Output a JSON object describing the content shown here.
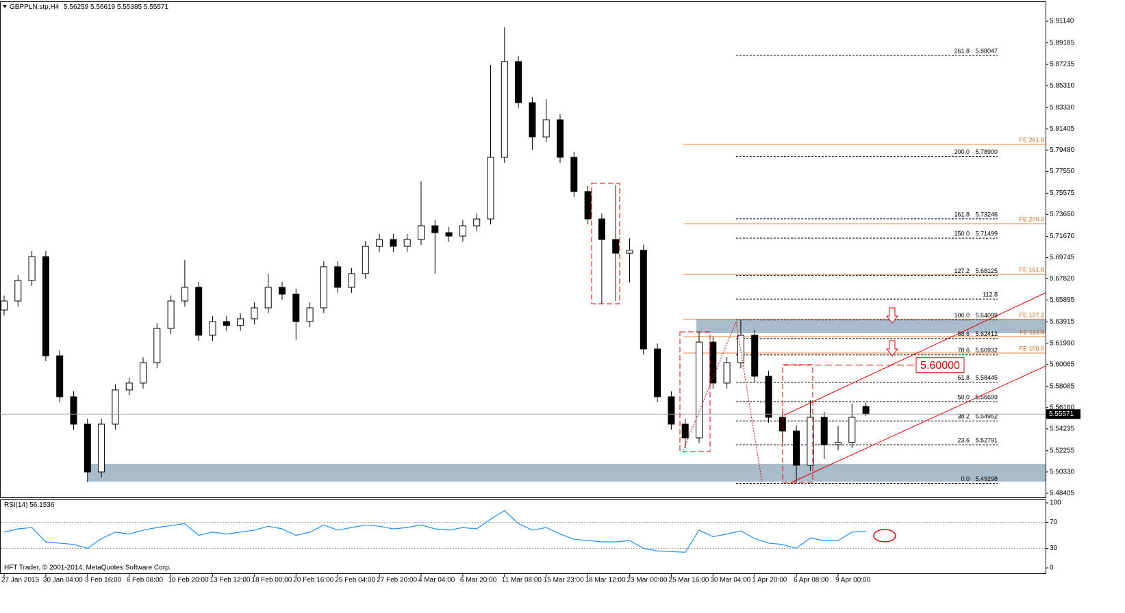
{
  "chart_data": [
    {
      "type": "candlestick",
      "title": "GBPPLN.stp,H4",
      "categories": [
        "27 Jan 2015",
        null,
        null,
        "30 Jan 04:00",
        null,
        null,
        "3 Feb 16:00",
        null,
        null,
        "6 Feb 08:00",
        null,
        null,
        "10 Feb 20:00",
        null,
        null,
        "13 Feb 12:00",
        null,
        null,
        "18 Feb 00:00",
        null,
        null,
        "20 Feb 16:00",
        null,
        null,
        "25 Feb 04:00",
        null,
        null,
        "27 Feb 20:00",
        null,
        null,
        "4 Mar 04:00",
        null,
        null,
        "6 Mar 20:00",
        null,
        null,
        "11 Mar 08:00",
        null,
        null,
        "15 Mar 23:00",
        null,
        null,
        "18 Mar 12:00",
        null,
        null,
        "23 Mar 00:00",
        null,
        null,
        "25 Mar 16:00",
        null,
        null,
        "30 Mar 04:00",
        null,
        null,
        "1 Apr 20:00",
        null,
        null,
        "6 Apr 08:00",
        null,
        null,
        "9 Apr 00:00",
        null,
        null
      ],
      "open": [
        5.65,
        5.6581,
        5.6767,
        5.6983,
        5.6085,
        5.5714,
        5.5466,
        5.5033,
        5.5466,
        5.5776,
        5.5838,
        5.6023,
        5.6333,
        5.6581,
        5.6705,
        5.6271,
        5.6395,
        5.636,
        5.642,
        5.6519,
        5.6705,
        5.6643,
        5.6395,
        5.6519,
        5.6891,
        5.6705,
        5.6829,
        5.7076,
        5.7138,
        5.7076,
        5.7138,
        5.7262,
        5.72,
        5.7169,
        5.7262,
        5.7324,
        5.7882,
        5.8749,
        5.8377,
        5.8067,
        5.8222,
        5.7882,
        5.7572,
        5.7324,
        5.7138,
        5.7014,
        5.704,
        5.6147,
        5.5714,
        5.5466,
        5.5342,
        5.6209,
        5.5838,
        5.6023,
        5.6271,
        5.59,
        5.5528,
        5.5404,
        5.5094,
        5.5528,
        5.528,
        5.53,
        5.56259
      ],
      "high": [
        5.6631,
        5.6817,
        5.7033,
        5.7033,
        5.6135,
        5.5764,
        5.5516,
        5.5516,
        5.5826,
        5.5888,
        5.6073,
        5.6383,
        5.6631,
        5.6953,
        5.6755,
        5.6445,
        5.6445,
        5.647,
        5.6569,
        5.683,
        5.6755,
        5.6693,
        5.6569,
        5.6941,
        5.6941,
        5.6879,
        5.7126,
        5.7188,
        5.7188,
        5.7188,
        5.7665,
        5.7312,
        5.725,
        5.7312,
        5.7374,
        5.8718,
        5.906,
        5.8799,
        5.8427,
        5.8408,
        5.8272,
        5.7932,
        5.7622,
        5.7374,
        5.763,
        5.715,
        5.709,
        5.6197,
        5.5764,
        5.5516,
        5.63,
        5.6259,
        5.6073,
        5.641,
        5.6321,
        5.595,
        5.5578,
        5.5454,
        5.5683,
        5.5578,
        5.545,
        5.565,
        5.56619
      ],
      "low": [
        5.645,
        5.6531,
        5.6717,
        5.6035,
        5.5664,
        5.5416,
        5.494,
        5.4983,
        5.5416,
        5.5726,
        5.5788,
        5.5973,
        5.6283,
        5.6531,
        5.6221,
        5.6221,
        5.631,
        5.631,
        5.637,
        5.6469,
        5.6593,
        5.623,
        5.6345,
        5.6469,
        5.6655,
        5.6655,
        5.6779,
        5.7026,
        5.7026,
        5.7026,
        5.7088,
        5.6829,
        5.7119,
        5.7119,
        5.7212,
        5.7274,
        5.7832,
        5.8327,
        5.795,
        5.8017,
        5.7832,
        5.7522,
        5.7274,
        5.6556,
        5.658,
        5.675,
        5.6097,
        5.5664,
        5.5416,
        5.525,
        5.5292,
        5.5788,
        5.5788,
        5.5973,
        5.585,
        5.5478,
        5.53,
        5.493,
        5.5044,
        5.515,
        5.523,
        5.525,
        5.55385
      ],
      "close": [
        5.6581,
        5.6767,
        5.6983,
        5.6085,
        5.5714,
        5.5466,
        5.5033,
        5.5466,
        5.5776,
        5.5838,
        5.6023,
        5.6333,
        5.6581,
        5.6705,
        5.6271,
        5.6395,
        5.636,
        5.642,
        5.6519,
        5.6705,
        5.6643,
        5.6395,
        5.6519,
        5.6891,
        5.6705,
        5.6829,
        5.7076,
        5.7138,
        5.7076,
        5.7138,
        5.7262,
        5.72,
        5.7169,
        5.7262,
        5.7324,
        5.7882,
        5.8749,
        5.8377,
        5.8067,
        5.8222,
        5.7882,
        5.7572,
        5.7324,
        5.7138,
        5.7014,
        5.704,
        5.6147,
        5.5714,
        5.5466,
        5.5342,
        5.6209,
        5.5838,
        5.6023,
        5.6271,
        5.59,
        5.5528,
        5.5404,
        5.5094,
        5.5528,
        5.528,
        5.53,
        5.5528,
        5.55571
      ],
      "ylim": [
        5.4803,
        5.9294
      ],
      "yticks": [
        {
          "value": 5.9114,
          "label": "5.91140"
        },
        5.89185,
        5.87235,
        {
          "value": 5.8531,
          "label": "5.85310"
        },
        {
          "value": 5.8333,
          "label": "5.83330"
        },
        5.81405,
        {
          "value": 5.7948,
          "label": "5.79480"
        },
        {
          "value": 5.7755,
          "label": "5.77550"
        },
        5.75575,
        {
          "value": 5.7365,
          "label": "5.73650"
        },
        {
          "value": 5.7167,
          "label": "5.71670"
        },
        5.69745,
        {
          "value": 5.6782,
          "label": "5.67820"
        },
        5.65895,
        5.63915,
        {
          "value": 5.6199,
          "label": "5.61990"
        },
        5.60065,
        5.58085,
        {
          "value": 5.5616,
          "label": "5.56160"
        },
        5.54235,
        5.52255,
        {
          "value": 5.5033,
          "label": "5.50330"
        },
        5.48405
      ],
      "fib_levels": [
        {
          "ratio": 261.8,
          "price": 5.88047
        },
        {
          "ratio": {
            "value": 200,
            "label": "200.0"
          },
          "price": {
            "value": 5.789,
            "label": "5.78900"
          }
        },
        {
          "ratio": 161.8,
          "price": 5.73246
        },
        {
          "ratio": {
            "value": 150,
            "label": "150.0"
          },
          "price": 5.71499
        },
        {
          "ratio": 127.2,
          "price": 5.68125
        },
        {
          "ratio": 112.8,
          "price": {
            "value": 5.6599
          }
        },
        {
          "ratio": {
            "value": 100,
            "label": "100.0"
          },
          "price": 5.64099
        },
        {
          "ratio": 88.6,
          "price": 5.62412
        },
        {
          "ratio": 78.6,
          "price": 5.60932
        },
        {
          "ratio": 61.8,
          "price": 5.58445
        },
        {
          "ratio": {
            "value": 50,
            "label": "50.0"
          },
          "price": 5.56699
        },
        {
          "ratio": 38.2,
          "price": 5.54952
        },
        {
          "ratio": 23.6,
          "price": 5.52791
        },
        {
          "ratio": {
            "value": 0,
            "label": "0.0"
          },
          "price": 5.49298
        }
      ],
      "fe_levels": [
        {
          "label": "FE 261.8",
          "price": 5.7999
        },
        {
          "label": "FE 200.0",
          "price": 5.7281
        },
        {
          "label": "FE 161.8",
          "price": 5.6822
        },
        {
          "label": "FE 127.2",
          "price": 5.6414
        },
        {
          "label": "FE 112.8",
          "price": 5.6259
        },
        {
          "label": "FE 100.0",
          "price": 5.611
        }
      ],
      "zones": [
        {
          "low": 5.4946,
          "high": 5.5107
        },
        {
          "low": 5.629,
          "high": 5.642
        }
      ],
      "target": {
        "value": 5.6,
        "label": "5.60000"
      }
    },
    {
      "type": "line",
      "title": "RSI(14)",
      "values": [
        55,
        60,
        62,
        40,
        38,
        36,
        30,
        45,
        55,
        52,
        58,
        62,
        65,
        68,
        50,
        55,
        52,
        55,
        58,
        64,
        60,
        50,
        55,
        66,
        58,
        62,
        66,
        64,
        60,
        62,
        66,
        60,
        58,
        62,
        60,
        75,
        88,
        68,
        58,
        62,
        52,
        44,
        42,
        40,
        40,
        42,
        30,
        26,
        25,
        24,
        58,
        48,
        52,
        57,
        45,
        38,
        36,
        30,
        46,
        42,
        42,
        55,
        56.1536
      ],
      "color": "#1e90ff",
      "ylim": [
        -8.4,
        104.2
      ],
      "yticks": [
        100,
        70,
        30,
        0
      ],
      "levels": [
        70,
        30
      ],
      "footer": "HFT Trader, © 2001-2014, MetaQuotes Software Corp."
    }
  ]
}
